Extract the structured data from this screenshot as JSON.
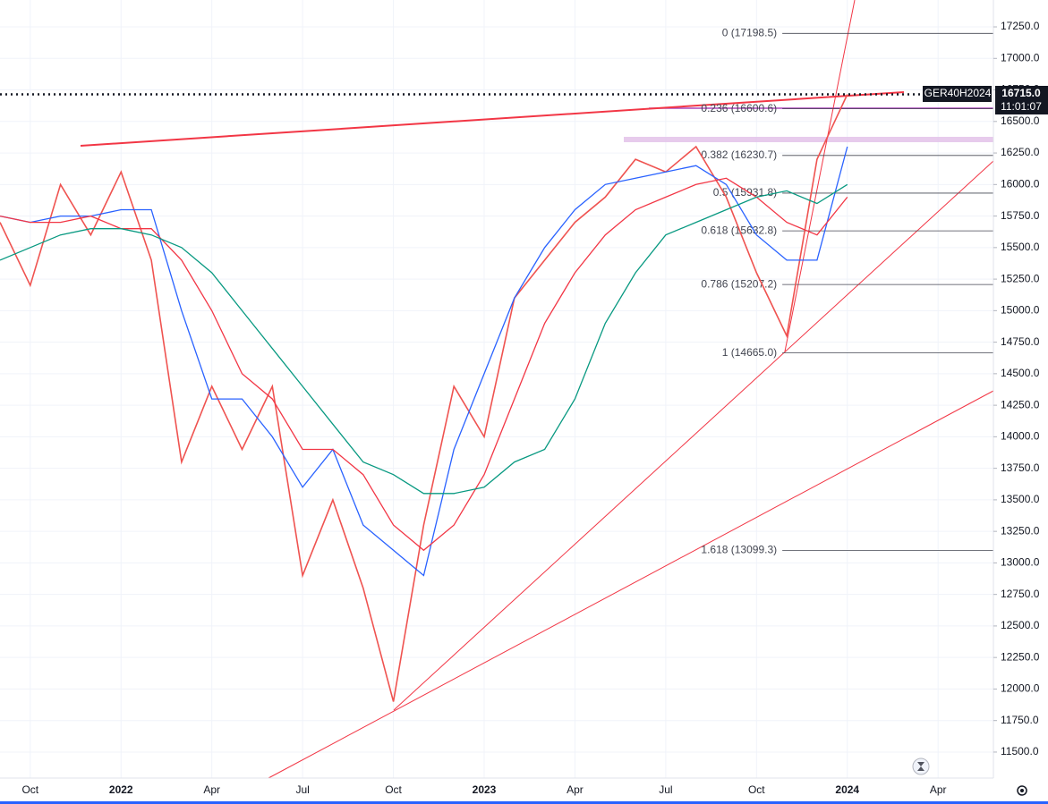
{
  "chart_data": {
    "type": "line",
    "x": [
      "2021-09",
      "2021-10",
      "2021-11",
      "2021-12",
      "2022-01",
      "2022-02",
      "2022-03",
      "2022-04",
      "2022-05",
      "2022-06",
      "2022-07",
      "2022-08",
      "2022-09",
      "2022-10",
      "2022-11",
      "2022-12",
      "2023-01",
      "2023-02",
      "2023-03",
      "2023-04",
      "2023-05",
      "2023-06",
      "2023-07",
      "2023-08",
      "2023-09",
      "2023-10",
      "2023-11",
      "2023-12",
      "2024-01"
    ],
    "series": [
      {
        "color": "#ef5350",
        "values": [
          15700,
          15200,
          16000,
          15600,
          16100,
          15400,
          13800,
          14400,
          13900,
          14400,
          12900,
          13500,
          12800,
          11900,
          13300,
          14400,
          14000,
          15100,
          15400,
          15700,
          15900,
          16200,
          16100,
          16300,
          15900,
          15300,
          14800,
          16200,
          16715
        ]
      },
      {
        "color": "#2962ff",
        "values": [
          15750,
          15700,
          15750,
          15750,
          15800,
          15800,
          15000,
          14300,
          14300,
          14000,
          13600,
          13900,
          13300,
          13100,
          12900,
          13900,
          14500,
          15100,
          15500,
          15800,
          16000,
          16050,
          16100,
          16150,
          16000,
          15600,
          15400,
          15400,
          16300
        ]
      },
      {
        "color": "#f23645",
        "values": [
          15750,
          15700,
          15700,
          15750,
          15650,
          15650,
          15400,
          15000,
          14500,
          14300,
          13900,
          13900,
          13700,
          13300,
          13100,
          13300,
          13700,
          14300,
          14900,
          15300,
          15600,
          15800,
          15900,
          16000,
          16050,
          15900,
          15700,
          15600,
          15900
        ]
      },
      {
        "color": "#089981",
        "values": [
          15400,
          15500,
          15600,
          15650,
          15650,
          15600,
          15500,
          15300,
          15000,
          14700,
          14400,
          14100,
          13800,
          13700,
          13550,
          13550,
          13600,
          13800,
          13900,
          14300,
          14900,
          15300,
          15600,
          15700,
          15800,
          15900,
          15950,
          15850,
          16000
        ]
      }
    ],
    "xlim": [
      "2021-09",
      "2024-05"
    ],
    "xticks": [
      {
        "value": "2021-10",
        "label": "Oct"
      },
      {
        "value": "2022-01",
        "label": "2022"
      },
      {
        "value": "2022-04",
        "label": "Apr"
      },
      {
        "value": "2022-07",
        "label": "Jul"
      },
      {
        "value": "2022-10",
        "label": "Oct"
      },
      {
        "value": "2023-01",
        "label": "2023"
      },
      {
        "value": "2023-04",
        "label": "Apr"
      },
      {
        "value": "2023-07",
        "label": "Jul"
      },
      {
        "value": "2023-10",
        "label": "Oct"
      },
      {
        "value": "2024-01",
        "label": "2024"
      },
      {
        "value": "2024-04",
        "label": "Apr"
      }
    ],
    "ylim": [
      11294,
      17463
    ],
    "yticks": [
      {
        "value": 11500,
        "label": "11500.0"
      },
      {
        "value": 11750,
        "label": "11750.0"
      },
      {
        "value": 12000,
        "label": "12000.0"
      },
      {
        "value": 12250,
        "label": "12250.0"
      },
      {
        "value": 12500,
        "label": "12500.0"
      },
      {
        "value": 12750,
        "label": "12750.0"
      },
      {
        "value": 13000,
        "label": "13000.0"
      },
      {
        "value": 13250,
        "label": "13250.0"
      },
      {
        "value": 13500,
        "label": "13500.0"
      },
      {
        "value": 13750,
        "label": "13750.0"
      },
      {
        "value": 14000,
        "label": "14000.0"
      },
      {
        "value": 14250,
        "label": "14250.0"
      },
      {
        "value": 14500,
        "label": "14500.0"
      },
      {
        "value": 14750,
        "label": "14750.0"
      },
      {
        "value": 15000,
        "label": "15000.0"
      },
      {
        "value": 15250,
        "label": "15250.0"
      },
      {
        "value": 15500,
        "label": "15500.0"
      },
      {
        "value": 15750,
        "label": "15750.0"
      },
      {
        "value": 16000,
        "label": "16000.0"
      },
      {
        "value": 16250,
        "label": "16250.0"
      },
      {
        "value": 16500,
        "label": "16500.0"
      },
      {
        "value": 16750,
        "label": "16750.0"
      },
      {
        "value": 17000,
        "label": "17000.0"
      },
      {
        "value": 17250,
        "label": "17250.0"
      }
    ],
    "fib_levels": [
      {
        "value": 17198.5,
        "label": "0 (17198.5)"
      },
      {
        "value": 16600.6,
        "label": "0.236 (16600.6)"
      },
      {
        "value": 16230.7,
        "label": "0.382 (16230.7)"
      },
      {
        "value": 15931.8,
        "label": "0.5 (15931.8)"
      },
      {
        "value": 15632.8,
        "label": "0.618 (15632.8)"
      },
      {
        "value": 15207.2,
        "label": "0.786 (15207.2)"
      },
      {
        "value": 14665.0,
        "label": "1 (14665.0)"
      },
      {
        "value": 13099.3,
        "label": "1.618 (13099.3)"
      }
    ],
    "symbol": "GER40H2024",
    "last_price": {
      "value": 16715,
      "label": "16715.0"
    },
    "countdown": "11:01:07",
    "grid": true
  }
}
